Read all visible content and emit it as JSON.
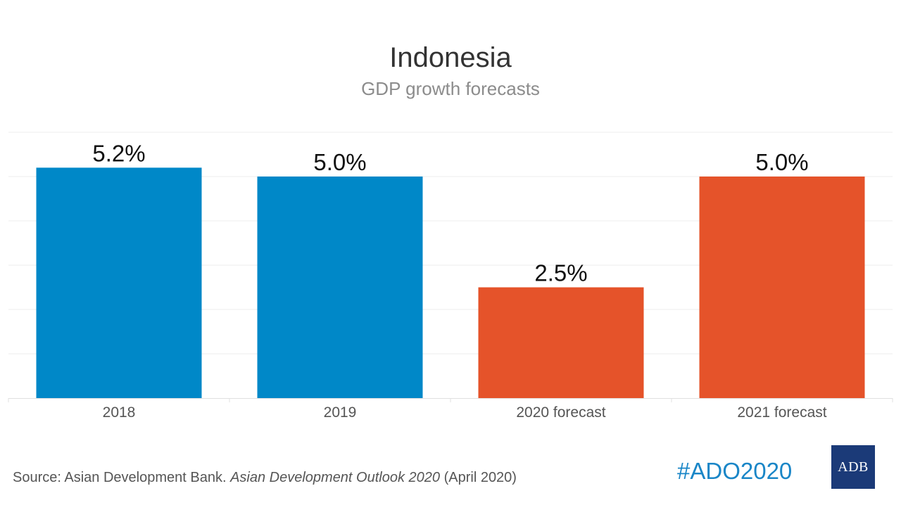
{
  "header": {
    "title": "Indonesia",
    "subtitle": "GDP growth forecasts"
  },
  "chart_data": {
    "type": "bar",
    "title": "Indonesia",
    "subtitle": "GDP growth forecasts",
    "categories": [
      "2018",
      "2019",
      "2020 forecast",
      "2021 forecast"
    ],
    "values": [
      5.2,
      5.0,
      2.5,
      5.0
    ],
    "value_labels": [
      "5.2%",
      "5.0%",
      "2.5%",
      "5.0%"
    ],
    "colors": [
      "#0088c8",
      "#0088c8",
      "#e5532a",
      "#e5532a"
    ],
    "xlabel": "",
    "ylabel": "",
    "ylim": [
      0,
      6
    ],
    "grid": true,
    "legend": "none"
  },
  "footer": {
    "source_prefix": "Source: Asian Development Bank. ",
    "source_italic": "Asian Development Outlook 2020",
    "source_suffix": " (April 2020)",
    "hashtag": "#ADO2020",
    "logo_text": "ADB"
  },
  "colors": {
    "actual": "#0088c8",
    "forecast": "#e5532a",
    "hashtag": "#1a86c7",
    "logo_bg": "#1b3a78"
  }
}
